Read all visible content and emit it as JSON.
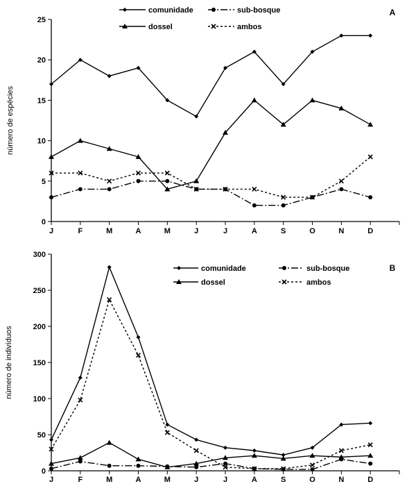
{
  "chart_data": [
    {
      "type": "line",
      "panel_label": "A",
      "ylabel": "número de espécies",
      "xlabel": "",
      "categories": [
        "J",
        "F",
        "M",
        "A",
        "M",
        "J",
        "J",
        "A",
        "S",
        "O",
        "N",
        "D"
      ],
      "ylim": [
        0,
        25
      ],
      "yticks": [
        0,
        5,
        10,
        15,
        20,
        25
      ],
      "grid": false,
      "legend_position": "top",
      "series": [
        {
          "name": "comunidade",
          "style": "solid",
          "marker": "diamond",
          "values": [
            17,
            20,
            18,
            19,
            15,
            13,
            19,
            21,
            17,
            21,
            23,
            23
          ]
        },
        {
          "name": "sub-bosque",
          "style": "dashdot",
          "marker": "circle",
          "values": [
            3,
            4,
            4,
            5,
            5,
            4,
            4,
            2,
            2,
            3,
            4,
            3
          ]
        },
        {
          "name": "dossel",
          "style": "solid",
          "marker": "triangle",
          "values": [
            8,
            10,
            9,
            8,
            4,
            5,
            11,
            15,
            12,
            15,
            14,
            12
          ]
        },
        {
          "name": "ambos",
          "style": "dotted",
          "marker": "x",
          "values": [
            6,
            6,
            5,
            6,
            6,
            4,
            4,
            4,
            3,
            3,
            5,
            8
          ]
        }
      ]
    },
    {
      "type": "line",
      "panel_label": "B",
      "ylabel": "número de indivíduos",
      "xlabel": "",
      "categories": [
        "J",
        "F",
        "M",
        "A",
        "M",
        "J",
        "J",
        "A",
        "S",
        "O",
        "N",
        "D"
      ],
      "ylim": [
        0,
        300
      ],
      "yticks": [
        0,
        50,
        100,
        150,
        200,
        250,
        300
      ],
      "grid": false,
      "legend_position": "top-right",
      "series": [
        {
          "name": "comunidade",
          "style": "solid",
          "marker": "diamond",
          "values": [
            43,
            129,
            282,
            185,
            64,
            43,
            32,
            28,
            22,
            32,
            64,
            66
          ]
        },
        {
          "name": "sub-bosque",
          "style": "dashdot",
          "marker": "circle",
          "values": [
            3,
            13,
            7,
            7,
            6,
            5,
            10,
            3,
            2,
            2,
            16,
            10
          ]
        },
        {
          "name": "dossel",
          "style": "solid",
          "marker": "triangle",
          "values": [
            10,
            18,
            39,
            16,
            5,
            10,
            18,
            21,
            17,
            21,
            19,
            21
          ]
        },
        {
          "name": "ambos",
          "style": "dotted",
          "marker": "x",
          "values": [
            30,
            98,
            237,
            160,
            53,
            28,
            5,
            3,
            3,
            8,
            28,
            36
          ]
        }
      ]
    }
  ]
}
